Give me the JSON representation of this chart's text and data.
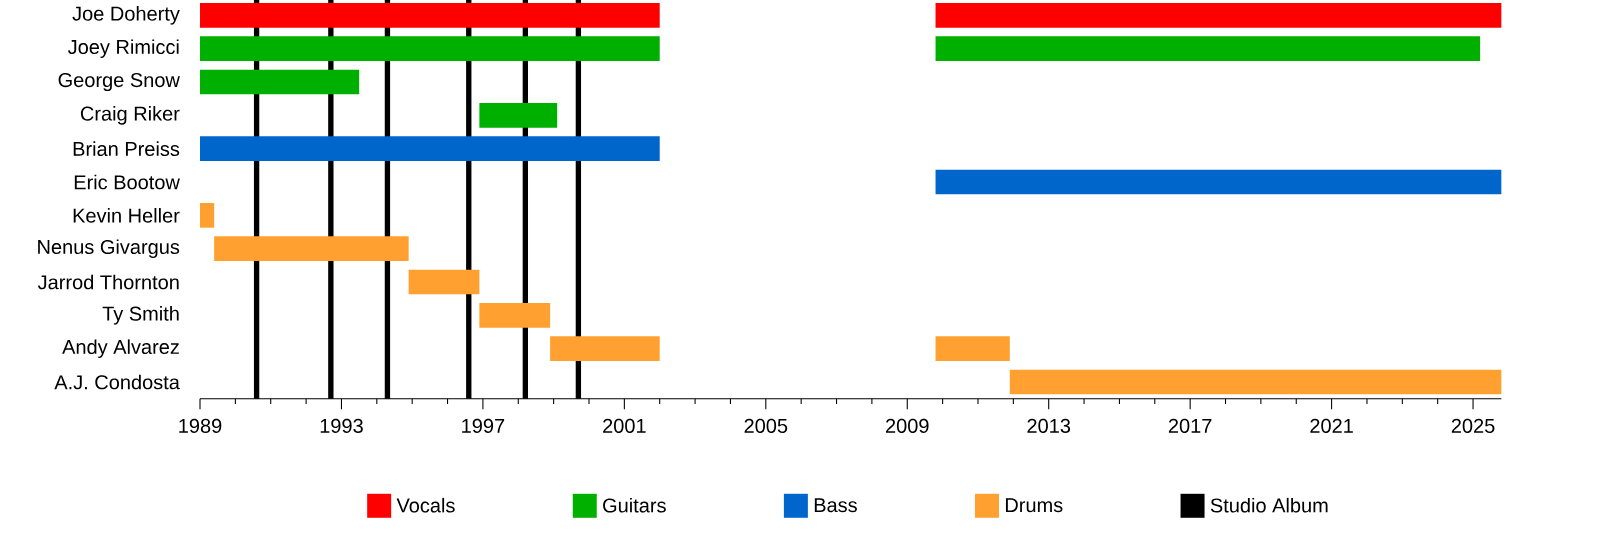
{
  "chart_data": {
    "type": "bar",
    "orientation": "horizontal",
    "legend": "bottom",
    "categories": [
      "Joe Doherty",
      "Joey Rimicci",
      "George Snow",
      "Craig Riker",
      "Brian Preiss",
      "Eric Bootow",
      "Kevin Heller",
      "Nenus Givargus",
      "Jarrod Thornton",
      "Ty Smith",
      "Andy Alvarez",
      "A.J. Condosta"
    ],
    "xlim": [
      1989,
      2025.8
    ],
    "xticks": [
      1989,
      {
        "value": 1990,
        "label": null
      },
      {
        "value": 1991,
        "label": null
      },
      {
        "value": 1992,
        "label": null
      },
      1993,
      {
        "value": 1994,
        "label": null
      },
      {
        "value": 1995,
        "label": null
      },
      {
        "value": 1996,
        "label": null
      },
      1997,
      {
        "value": 1998,
        "label": null
      },
      {
        "value": 1999,
        "label": null
      },
      {
        "value": 2000,
        "label": null
      },
      2001,
      {
        "value": 2002,
        "label": null
      },
      {
        "value": 2003,
        "label": null
      },
      {
        "value": 2004,
        "label": null
      },
      2005,
      {
        "value": 2006,
        "label": null
      },
      {
        "value": 2007,
        "label": null
      },
      {
        "value": 2008,
        "label": null
      },
      2009,
      {
        "value": 2010,
        "label": null
      },
      {
        "value": 2011,
        "label": null
      },
      {
        "value": 2012,
        "label": null
      },
      2013,
      {
        "value": 2014,
        "label": null
      },
      {
        "value": 2015,
        "label": null
      },
      {
        "value": 2016,
        "label": null
      },
      2017,
      {
        "value": 2018,
        "label": null
      },
      {
        "value": 2019,
        "label": null
      },
      {
        "value": 2020,
        "label": null
      },
      2021,
      {
        "value": 2022,
        "label": null
      },
      {
        "value": 2023,
        "label": null
      },
      {
        "value": 2024,
        "label": null
      },
      2025
    ],
    "series": [
      {
        "name": "Vocals",
        "color": "#ff0000",
        "base": [
          1989,
          null,
          null,
          null,
          null,
          null,
          null,
          null,
          null,
          null,
          null,
          null
        ],
        "values": [
          13,
          null,
          null,
          null,
          null,
          null,
          null,
          null,
          null,
          null,
          null,
          null
        ]
      },
      {
        "color": "#ff0000",
        "base": [
          2009.8,
          null,
          null,
          null,
          null,
          null,
          null,
          null,
          null,
          null,
          null,
          null
        ],
        "values": [
          16.0,
          null,
          null,
          null,
          null,
          null,
          null,
          null,
          null,
          null,
          null,
          null
        ]
      },
      {
        "name": "Guitars",
        "color": "#00b000",
        "base": [
          null,
          1989,
          1989,
          1996.9,
          null,
          null,
          null,
          null,
          null,
          null,
          null,
          null
        ],
        "values": [
          null,
          13,
          4.5,
          2.2,
          null,
          null,
          null,
          null,
          null,
          null,
          null,
          null
        ]
      },
      {
        "color": "#00b000",
        "base": [
          null,
          2009.8,
          null,
          null,
          null,
          null,
          null,
          null,
          null,
          null,
          null,
          null
        ],
        "values": [
          null,
          15.4,
          null,
          null,
          null,
          null,
          null,
          null,
          null,
          null,
          null,
          null
        ]
      },
      {
        "name": "Bass",
        "color": "#0066cc",
        "base": [
          null,
          null,
          null,
          null,
          1989,
          2009.8,
          null,
          null,
          null,
          null,
          null,
          null
        ],
        "values": [
          null,
          null,
          null,
          null,
          13,
          16.0,
          null,
          null,
          null,
          null,
          null,
          null
        ]
      },
      {
        "name": "Drums",
        "color": "#ffa030",
        "base": [
          null,
          null,
          null,
          null,
          null,
          null,
          1989,
          1989.4,
          1994.9,
          1996.9,
          1998.9,
          2011.9
        ],
        "values": [
          null,
          null,
          null,
          null,
          null,
          null,
          0.4,
          5.5,
          2.0,
          2.0,
          3.1,
          13.9
        ]
      },
      {
        "color": "#ffa030",
        "base": [
          null,
          null,
          null,
          null,
          null,
          null,
          null,
          null,
          null,
          null,
          2009.8,
          null
        ],
        "values": [
          null,
          null,
          null,
          null,
          null,
          null,
          null,
          null,
          null,
          null,
          2.1,
          null
        ]
      }
    ],
    "ref_lines": [
      {
        "axis": "x",
        "value": 1990.6,
        "label": "Studio Album",
        "color": "#000000"
      },
      {
        "axis": "x",
        "value": 1992.7,
        "color": "#000000"
      },
      {
        "axis": "x",
        "value": 1994.3,
        "color": "#000000"
      },
      {
        "axis": "x",
        "value": 1996.6,
        "color": "#000000"
      },
      {
        "axis": "x",
        "value": 1998.2,
        "color": "#000000"
      },
      {
        "axis": "x",
        "value": 1999.7,
        "color": "#000000"
      }
    ]
  }
}
